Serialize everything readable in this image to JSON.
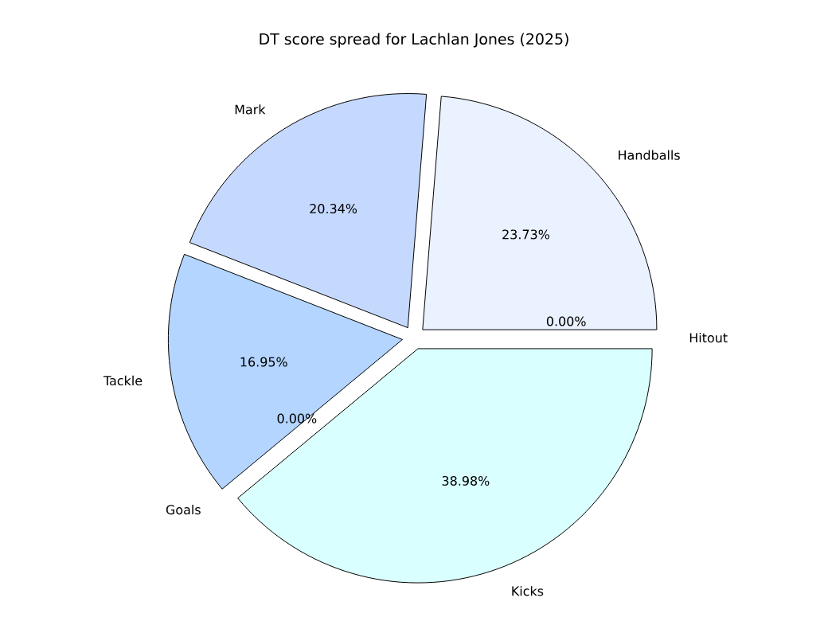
{
  "chart_data": {
    "type": "pie",
    "title": "DT score spread for Lachlan Jones (2025)",
    "categories": [
      "Handballs",
      "Mark",
      "Tackle",
      "Goals",
      "Kicks",
      "Hitout"
    ],
    "values": [
      23.73,
      20.34,
      16.95,
      0,
      38.98,
      0
    ],
    "value_labels": [
      "23.73%",
      "20.34%",
      "16.95%",
      "0.00%",
      "38.98%",
      "0.00%"
    ],
    "colors": [
      "#eaf1ff",
      "#c5d9ff",
      "#b3d5ff",
      "#b0c4de",
      "#d9ffff",
      "#e0ffff"
    ]
  }
}
